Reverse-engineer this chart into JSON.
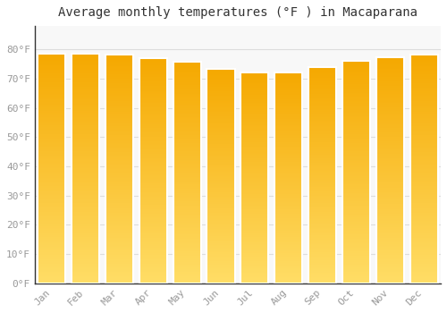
{
  "title": "Average monthly temperatures (°F ) in Macaparana",
  "months": [
    "Jan",
    "Feb",
    "Mar",
    "Apr",
    "May",
    "Jun",
    "Jul",
    "Aug",
    "Sep",
    "Oct",
    "Nov",
    "Dec"
  ],
  "values": [
    78.5,
    78.5,
    78.1,
    77.0,
    75.9,
    73.4,
    72.1,
    72.1,
    74.1,
    76.1,
    77.2,
    78.1
  ],
  "bar_color_top": "#F5A800",
  "bar_color_bottom": "#FFD966",
  "bar_edge_color": "#CC8800",
  "background_color": "#FFFFFF",
  "plot_bg_color": "#F8F8F8",
  "grid_color": "#DDDDDD",
  "ylim": [
    0,
    88
  ],
  "yticks": [
    0,
    10,
    20,
    30,
    40,
    50,
    60,
    70,
    80
  ],
  "ytick_labels": [
    "0°F",
    "10°F",
    "20°F",
    "30°F",
    "40°F",
    "50°F",
    "60°F",
    "70°F",
    "80°F"
  ],
  "tick_color": "#999999",
  "title_fontsize": 10,
  "tick_fontsize": 8,
  "figsize": [
    5.0,
    3.5
  ],
  "dpi": 100,
  "bar_width": 0.82
}
